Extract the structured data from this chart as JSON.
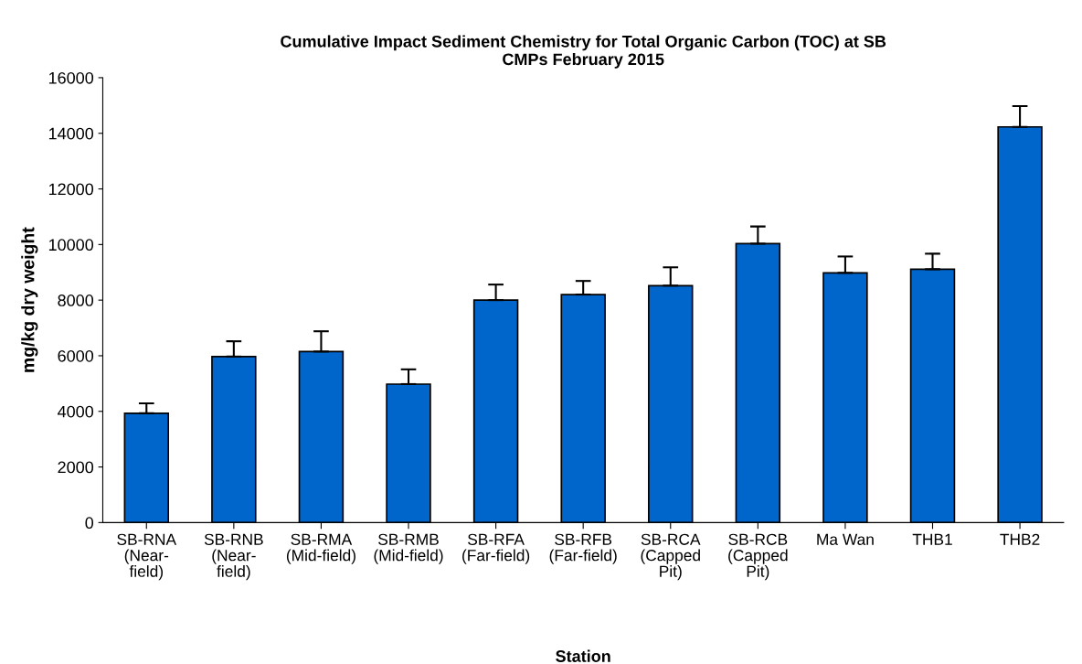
{
  "chart_data": {
    "type": "bar",
    "title": "Cumulative Impact Sediment Chemistry for Total Organic Carbon (TOC) at SB\nCMPs February 2015",
    "xlabel": "Station",
    "ylabel": "mg/kg dry weight",
    "categories": [
      "SB-RNA\n(Near-\nfield)",
      "SB-RNB\n(Near-\nfield)",
      "SB-RMA\n(Mid-field)",
      "SB-RMB\n(Mid-field)",
      "SB-RFA\n(Far-field)",
      "SB-RFB\n(Far-field)",
      "SB-RCA\n(Capped\nPit)",
      "SB-RCB\n(Capped\nPit)",
      "Ma Wan",
      "THB1",
      "THB2"
    ],
    "values": [
      3930,
      5970,
      6150,
      4980,
      8000,
      8200,
      8520,
      10030,
      8980,
      9110,
      14230
    ],
    "errors": [
      [
        3930,
        4290
      ],
      [
        5970,
        6520
      ],
      [
        6150,
        6880
      ],
      [
        4980,
        5510
      ],
      [
        8000,
        8560
      ],
      [
        8200,
        8690
      ],
      [
        8520,
        9180
      ],
      [
        10030,
        10650
      ],
      [
        8980,
        9570
      ],
      [
        9110,
        9670
      ],
      [
        14230,
        14980
      ]
    ],
    "color": "#0066cc",
    "ylim": [
      0,
      16000
    ],
    "yticks": [
      0,
      2000,
      4000,
      6000,
      8000,
      10000,
      12000,
      14000,
      16000
    ],
    "grid": false
  }
}
